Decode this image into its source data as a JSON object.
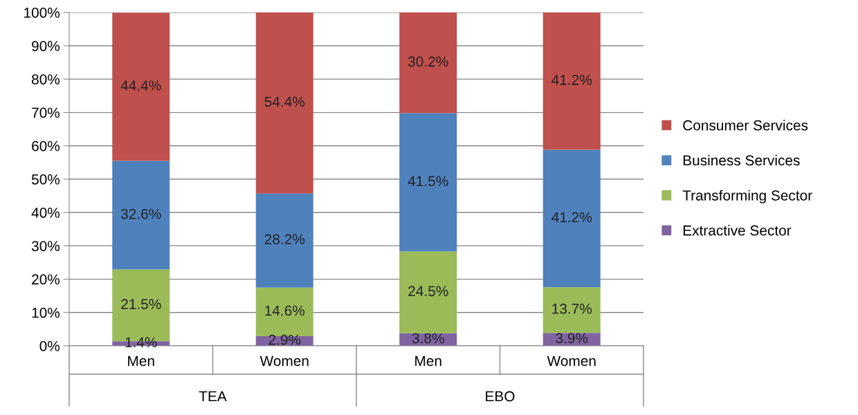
{
  "chart_data": {
    "type": "bar",
    "stacked": true,
    "categories": [
      "Men",
      "Women",
      "Men",
      "Women"
    ],
    "series": [
      {
        "name": "Extractive Sector",
        "color": "#8064a2",
        "values": [
          1.4,
          2.9,
          3.8,
          3.9
        ],
        "value_labels": [
          "1.4%",
          "2.9%",
          "3.8%",
          "3.9%"
        ]
      },
      {
        "name": "Transforming Sector",
        "color": "#9bbb59",
        "values": [
          21.5,
          14.6,
          24.5,
          13.7
        ],
        "value_labels": [
          "21.5%",
          "14.6%",
          "24.5%",
          "13.7%"
        ]
      },
      {
        "name": "Business Services",
        "color": "#4f81bd",
        "values": [
          32.6,
          28.2,
          41.5,
          41.2
        ],
        "value_labels": [
          "32.6%",
          "28.2%",
          "41.5%",
          "41.2%"
        ]
      },
      {
        "name": "Consumer Services",
        "color": "#c0504d",
        "values": [
          44.4,
          54.4,
          30.2,
          41.2
        ],
        "value_labels": [
          "44.4%",
          "54.4%",
          "30.2%",
          "41.2%"
        ]
      }
    ],
    "annotations": [
      "TEA",
      "EBO"
    ],
    "ylim": [
      0,
      100
    ],
    "yticks": [
      {
        "value": 0,
        "label": "0%"
      },
      {
        "value": 10,
        "label": "10%"
      },
      {
        "value": 20,
        "label": "20%"
      },
      {
        "value": 30,
        "label": "30%"
      },
      {
        "value": 40,
        "label": "40%"
      },
      {
        "value": 50,
        "label": "50%"
      },
      {
        "value": 60,
        "label": "60%"
      },
      {
        "value": 70,
        "label": "70%"
      },
      {
        "value": 80,
        "label": "80%"
      },
      {
        "value": 90,
        "label": "90%"
      },
      {
        "value": 100,
        "label": "100%"
      }
    ],
    "grid": "y",
    "legend": "right"
  }
}
